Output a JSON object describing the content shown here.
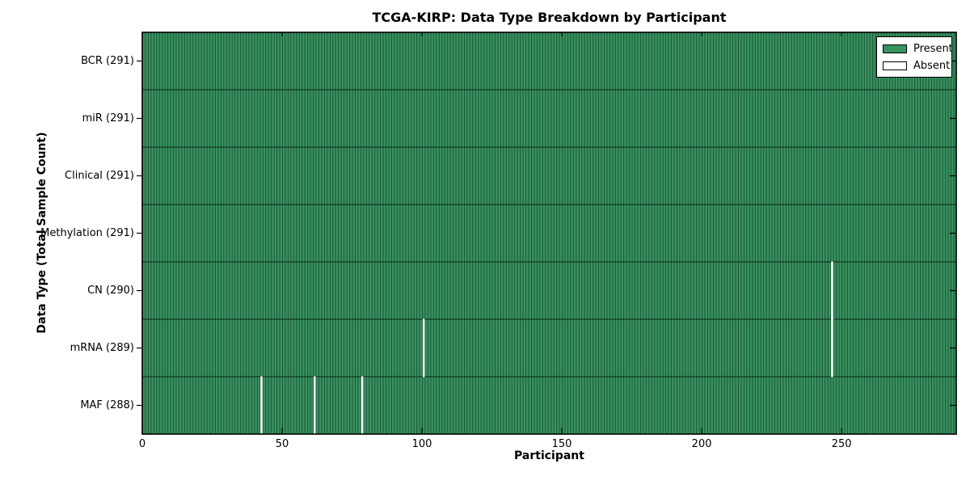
{
  "chart_data": {
    "type": "heatmap",
    "title": "TCGA-KIRP: Data Type Breakdown by Participant",
    "xlabel": "Participant",
    "ylabel": "Data Type (Total Sample Count)",
    "n_participants": 291,
    "xlim": [
      0,
      291
    ],
    "x_ticks": [
      0,
      50,
      100,
      150,
      200,
      250
    ],
    "legend": {
      "present": "Present",
      "absent": "Absent"
    },
    "legend_position": "upper right",
    "rows": [
      {
        "label": "BCR (291)",
        "data_type": "BCR",
        "present_count": 291,
        "absent_participants": []
      },
      {
        "label": "miR (291)",
        "data_type": "miR",
        "present_count": 291,
        "absent_participants": []
      },
      {
        "label": "Clinical (291)",
        "data_type": "Clinical",
        "present_count": 291,
        "absent_participants": []
      },
      {
        "label": "Methylation (291)",
        "data_type": "Methylation",
        "present_count": 291,
        "absent_participants": []
      },
      {
        "label": "CN (290)",
        "data_type": "CN",
        "present_count": 290,
        "absent_participants": [
          246
        ]
      },
      {
        "label": "mRNA (289)",
        "data_type": "mRNA",
        "present_count": 289,
        "absent_participants": [
          100,
          246
        ]
      },
      {
        "label": "MAF (288)",
        "data_type": "MAF",
        "present_count": 288,
        "absent_participants": [
          42,
          61,
          78
        ]
      }
    ],
    "colors": {
      "present": "#37935f",
      "bar_edge": "#1b4c33",
      "absent": "#ffffff",
      "row_divider": "#123826",
      "axis": "#000000",
      "background": "#ffffff"
    }
  }
}
